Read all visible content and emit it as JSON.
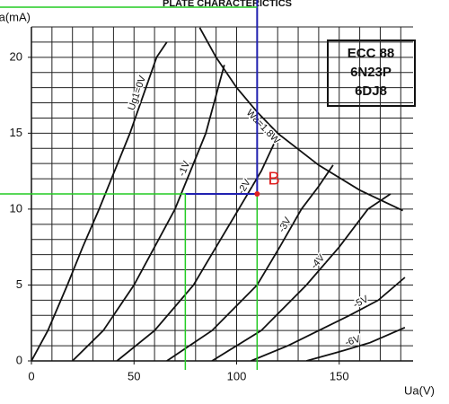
{
  "chart_data": {
    "type": "line",
    "title": "PLATE CHARACTERICTICS",
    "x_label": "Ua(V)",
    "y_label": "Ia(mA)",
    "xlim": [
      0,
      186
    ],
    "ylim": [
      0,
      22
    ],
    "xticks": [
      0,
      50,
      100,
      150
    ],
    "yticks": [
      0,
      5,
      10,
      15,
      20
    ],
    "xminor": [
      10,
      20,
      30,
      40,
      50,
      60,
      70,
      80,
      90,
      100,
      110,
      120,
      130,
      140,
      150,
      160,
      170,
      180
    ],
    "yminor": [
      1,
      2,
      3,
      4,
      5,
      6,
      7,
      8,
      9,
      10,
      11,
      12,
      13,
      14,
      15,
      16,
      17,
      18,
      19,
      20,
      21,
      22
    ],
    "grid": true,
    "series": [
      {
        "name": "Ug1=0V",
        "color": "#111111",
        "x": [
          0,
          8,
          17.5,
          25,
          33,
          48,
          61,
          66
        ],
        "values": [
          0,
          2,
          5,
          7.5,
          10,
          15,
          20,
          21
        ]
      },
      {
        "name": "-1V",
        "color": "#111111",
        "x": [
          20,
          35,
          50,
          60,
          70,
          85,
          94
        ],
        "values": [
          0,
          2,
          5,
          7.5,
          10,
          15,
          19.5
        ]
      },
      {
        "name": "-2V",
        "color": "#111111",
        "x": [
          41.7,
          60,
          79,
          90,
          101,
          112,
          120.6
        ],
        "values": [
          0,
          2,
          5,
          7.5,
          10,
          12.5,
          15
        ]
      },
      {
        "name": "-3V",
        "color": "#111111",
        "x": [
          66,
          88,
          110,
          121,
          131.6,
          140,
          147
        ],
        "values": [
          0,
          2,
          5,
          7.5,
          10,
          11.5,
          12.9
        ]
      },
      {
        "name": "-4V",
        "color": "#111111",
        "x": [
          88,
          112,
          134,
          150,
          164,
          175
        ],
        "values": [
          0,
          2,
          5,
          7.5,
          10,
          11
        ]
      },
      {
        "name": "-5V",
        "color": "#111111",
        "x": [
          107,
          125,
          140,
          155,
          169,
          182
        ],
        "values": [
          0,
          1,
          2,
          3,
          4,
          5.5
        ]
      },
      {
        "name": "-6V",
        "color": "#111111",
        "x": [
          134,
          150,
          165,
          182
        ],
        "values": [
          0,
          0.6,
          1.2,
          2.2
        ]
      },
      {
        "name": "Wa=1.8W",
        "color": "#111111",
        "x": [
          82,
          90,
          100,
          110,
          120,
          140,
          160,
          181
        ],
        "values": [
          21.95,
          20,
          18,
          16.4,
          15,
          12.9,
          11.25,
          9.9
        ]
      }
    ],
    "tube_names": [
      "ECC 88",
      "6N23P",
      "6DJ8"
    ],
    "point_b": {
      "label": "B",
      "x": 110,
      "y": 11
    },
    "guide_x": 75
  }
}
